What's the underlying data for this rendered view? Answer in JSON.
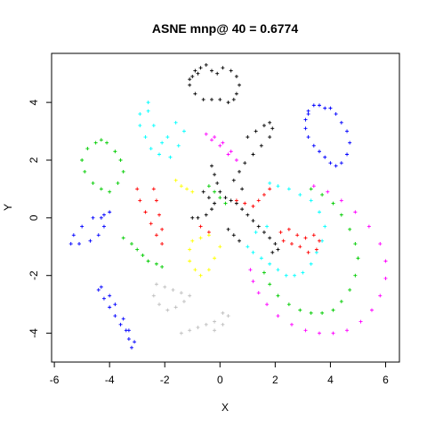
{
  "chart_data": {
    "type": "scatter",
    "title": "ASNE mnp@ 40 = 0.6774",
    "xlabel": "X",
    "ylabel": "Y",
    "xlim": [
      -6.1,
      6.5
    ],
    "ylim": [
      -5.0,
      5.7
    ],
    "xticks": [
      -6,
      -4,
      -2,
      0,
      2,
      4,
      6
    ],
    "yticks": [
      -4,
      -2,
      0,
      2,
      4
    ],
    "xtick_labels": [
      "-6",
      "-4",
      "-2",
      "0",
      "2",
      "4",
      "6"
    ],
    "ytick_labels": [
      "-4",
      "-2",
      "0",
      "2",
      "4"
    ],
    "grid": false,
    "legend": "none",
    "marker": "plus",
    "series": [
      {
        "color": "#000000",
        "x": [
          -1.1,
          -0.9,
          -0.7,
          -0.5,
          -0.3,
          -0.1,
          0.1,
          0.4,
          0.6,
          0.7,
          0.6,
          0.5,
          0.3,
          0.0,
          -0.3,
          -0.6,
          -0.9,
          -1.1,
          -1.0,
          -0.8,
          1.0,
          1.3,
          1.6,
          1.8,
          1.9,
          1.8,
          1.5,
          1.2,
          0.9,
          0.7,
          0.5,
          0.8,
          -0.3,
          -0.2,
          -0.1,
          0.0,
          0.2,
          0.4,
          0.6,
          0.8,
          1.0,
          1.2,
          1.4,
          1.6,
          1.8,
          2.0,
          2.1,
          1.9,
          -1.0,
          -0.8,
          -0.5,
          -0.3,
          -0.2,
          -0.4,
          -0.6,
          0.3,
          0.5,
          0.7
        ],
        "y": [
          4.8,
          5.1,
          5.2,
          5.3,
          5.1,
          5.0,
          5.2,
          5.1,
          4.9,
          4.6,
          4.3,
          4.1,
          4.0,
          4.1,
          4.1,
          4.1,
          4.3,
          4.6,
          4.9,
          5.0,
          2.8,
          3.0,
          3.2,
          3.3,
          3.1,
          2.8,
          2.5,
          2.2,
          1.9,
          1.6,
          1.3,
          1.0,
          1.8,
          1.5,
          1.2,
          0.9,
          0.7,
          0.6,
          0.5,
          0.3,
          0.1,
          -0.1,
          -0.3,
          -0.5,
          -0.7,
          -0.9,
          -1.1,
          -1.2,
          0.0,
          0.0,
          0.1,
          0.3,
          0.5,
          0.7,
          0.9,
          -0.4,
          -0.6,
          -0.8
        ]
      },
      {
        "color": "#0000ff",
        "x": [
          3.2,
          3.4,
          3.6,
          3.8,
          4.0,
          4.2,
          4.4,
          4.6,
          4.7,
          4.6,
          4.4,
          4.2,
          4.0,
          3.8,
          3.6,
          3.4,
          3.2,
          3.1,
          3.1,
          3.2,
          -4.3,
          -4.0,
          -4.2,
          -4.6,
          -5.0,
          -5.3,
          -5.4,
          -5.1,
          -4.7,
          -4.4,
          -4.2,
          -4.4,
          -4.2,
          -4.0,
          -3.8,
          -3.6,
          -3.4,
          -3.3,
          -3.2,
          -3.1,
          -3.3,
          -3.5,
          -3.8,
          -4.0,
          -4.3
        ],
        "y": [
          3.7,
          3.9,
          3.9,
          3.8,
          3.8,
          3.6,
          3.3,
          3.0,
          2.6,
          2.2,
          1.9,
          1.8,
          1.9,
          2.1,
          2.3,
          2.5,
          2.8,
          3.1,
          3.4,
          3.6,
          0.0,
          0.2,
          0.1,
          0.0,
          -0.3,
          -0.6,
          -0.9,
          -0.9,
          -0.8,
          -0.6,
          -0.3,
          -2.5,
          -2.8,
          -3.1,
          -3.4,
          -3.7,
          -3.9,
          -4.2,
          -4.5,
          -4.3,
          -3.9,
          -3.5,
          -3.0,
          -2.7,
          -2.4
        ]
      },
      {
        "color": "#00ffff",
        "x": [
          -2.6,
          -2.9,
          -2.9,
          -2.7,
          -2.5,
          -2.2,
          -1.9,
          -1.6,
          -1.3,
          -1.5,
          -1.8,
          -2.1,
          -2.4,
          -2.6,
          1.8,
          2.1,
          2.5,
          2.9,
          3.3,
          3.6,
          3.8,
          3.7,
          3.5,
          3.3,
          3.0,
          2.7,
          2.4,
          2.1,
          1.8,
          1.5,
          1.2,
          1.0,
          1.3,
          1.7
        ],
        "y": [
          4.0,
          3.6,
          3.2,
          2.8,
          2.4,
          2.2,
          2.8,
          3.3,
          3.0,
          2.5,
          2.1,
          2.6,
          3.2,
          3.7,
          1.2,
          1.1,
          1.0,
          0.8,
          0.6,
          0.2,
          -0.3,
          -0.8,
          -1.2,
          -1.6,
          -1.9,
          -2.0,
          -2.0,
          -1.8,
          -1.6,
          -1.4,
          -1.2,
          -1.0,
          -0.5,
          -0.3
        ]
      },
      {
        "color": "#00cc00",
        "x": [
          -4.5,
          -4.8,
          -5.0,
          -4.9,
          -4.6,
          -4.3,
          -4.0,
          -3.7,
          -3.5,
          -3.6,
          -3.8,
          -4.1,
          -4.3,
          -3.5,
          -3.2,
          -3.0,
          -2.8,
          -2.6,
          -2.3,
          -2.1,
          3.3,
          3.7,
          4.1,
          4.4,
          4.7,
          4.9,
          5.0,
          4.9,
          4.7,
          4.4,
          4.1,
          3.7,
          3.3,
          2.9,
          2.5,
          2.1,
          1.8,
          1.6,
          -0.4,
          -0.2,
          0.0,
          0.2
        ],
        "y": [
          2.6,
          2.4,
          2.0,
          1.6,
          1.2,
          1.0,
          0.9,
          1.2,
          1.6,
          2.0,
          2.3,
          2.6,
          2.7,
          -0.7,
          -0.9,
          -1.1,
          -1.3,
          -1.5,
          -1.6,
          -1.7,
          1.0,
          0.8,
          0.5,
          0.1,
          -0.4,
          -0.9,
          -1.4,
          -2.0,
          -2.5,
          -2.9,
          -3.2,
          -3.3,
          -3.3,
          -3.2,
          -3.0,
          -2.7,
          -2.3,
          -1.9,
          1.1,
          0.9,
          0.7,
          0.5
        ]
      },
      {
        "color": "#ff00ff",
        "x": [
          -0.5,
          -0.2,
          0.1,
          0.4,
          0.6,
          0.3,
          0.0,
          -0.3,
          3.4,
          3.9,
          4.4,
          4.9,
          5.4,
          5.8,
          6.0,
          6.0,
          5.8,
          5.5,
          5.1,
          4.6,
          4.1,
          3.6,
          3.1,
          2.6,
          2.1,
          1.7,
          1.4,
          1.2,
          1.1
        ],
        "y": [
          2.9,
          2.8,
          2.6,
          2.3,
          2.0,
          2.2,
          2.5,
          2.7,
          1.1,
          0.9,
          0.6,
          0.2,
          -0.3,
          -0.9,
          -1.5,
          -2.1,
          -2.7,
          -3.2,
          -3.6,
          -3.9,
          -4.0,
          -4.0,
          -3.9,
          -3.7,
          -3.4,
          -3.0,
          -2.6,
          -2.2,
          -1.8
        ]
      },
      {
        "color": "#ff0000",
        "x": [
          -3.0,
          -2.9,
          -2.7,
          -2.5,
          -2.3,
          -2.1,
          -2.4,
          -2.3,
          -2.2,
          -2.1,
          2.2,
          2.5,
          2.8,
          3.1,
          3.4,
          3.6,
          3.5,
          3.2,
          2.9,
          2.6,
          2.3,
          0.6,
          0.9,
          1.2,
          1.4,
          1.6,
          1.8,
          -0.7,
          -0.4
        ],
        "y": [
          1.0,
          0.6,
          0.2,
          -0.2,
          -0.6,
          -0.9,
          1.0,
          0.6,
          0.1,
          -0.4,
          -0.5,
          -0.4,
          -0.6,
          -0.7,
          -0.6,
          -0.8,
          -1.1,
          -1.2,
          -1.0,
          -0.9,
          -0.8,
          0.6,
          0.5,
          0.4,
          0.6,
          0.8,
          1.0,
          -0.3,
          -0.5
        ]
      },
      {
        "color": "#ffff00",
        "x": [
          -1.6,
          -1.4,
          -1.2,
          -1.0,
          -0.4,
          -0.7,
          -1.0,
          -1.1,
          -1.1,
          -0.9,
          -0.7,
          -0.4,
          -0.2,
          0.0
        ],
        "y": [
          1.3,
          1.1,
          1.0,
          0.9,
          -0.6,
          -0.7,
          -0.8,
          -1.1,
          -1.5,
          -1.8,
          -2.0,
          -1.8,
          -1.4,
          -1.0
        ]
      },
      {
        "color": "#bebebe",
        "x": [
          -2.3,
          -2.0,
          -1.7,
          -1.4,
          -1.1,
          -1.3,
          -1.6,
          -1.9,
          -2.2,
          -2.4,
          -1.4,
          -1.1,
          -0.8,
          -0.5,
          -0.2,
          0.1,
          0.3,
          0.1,
          -0.2
        ],
        "y": [
          -2.3,
          -2.4,
          -2.5,
          -2.6,
          -2.7,
          -2.9,
          -3.1,
          -3.2,
          -3.0,
          -2.7,
          -4.0,
          -3.9,
          -3.8,
          -3.7,
          -3.6,
          -3.3,
          -3.4,
          -3.7,
          -3.9
        ]
      }
    ]
  }
}
